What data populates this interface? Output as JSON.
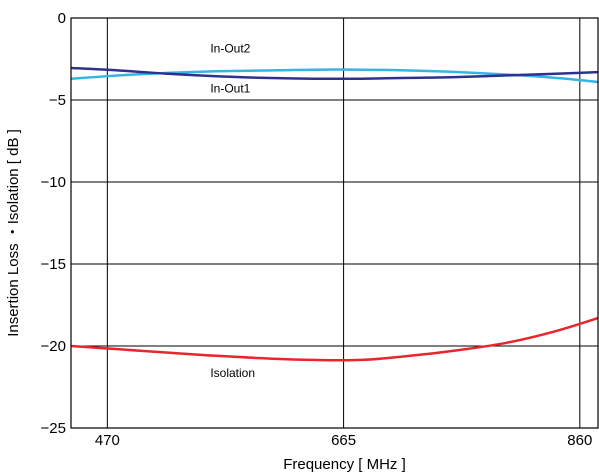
{
  "chart_data": {
    "type": "line",
    "title": "",
    "xlabel": "Frequency [ MHz ]",
    "ylabel": "Insertion Loss ・Isolation [ dB ]",
    "xlim": [
      440,
      875
    ],
    "ylim": [
      -25,
      0
    ],
    "x_ticks": [
      {
        "value": 470,
        "label": "470"
      },
      {
        "value": 665,
        "label": "665"
      },
      {
        "value": 860,
        "label": "860"
      }
    ],
    "y_ticks": [
      {
        "value": 0,
        "label": "0"
      },
      {
        "value": -5,
        "label": "−5"
      },
      {
        "value": -10,
        "label": "−10"
      },
      {
        "value": -15,
        "label": "−15"
      },
      {
        "value": -20,
        "label": "−20"
      },
      {
        "value": -25,
        "label": "−25"
      }
    ],
    "grid": true,
    "series": [
      {
        "name": "In-Out2",
        "color": "#33b5e5",
        "label_at": [
          555,
          -2.1
        ],
        "x": [
          440,
          480,
          520,
          560,
          600,
          640,
          680,
          720,
          760,
          800,
          840,
          875
        ],
        "y": [
          -3.7,
          -3.5,
          -3.35,
          -3.25,
          -3.2,
          -3.15,
          -3.15,
          -3.2,
          -3.3,
          -3.45,
          -3.65,
          -3.9
        ]
      },
      {
        "name": "In-Out1",
        "color": "#2e3192",
        "label_at": [
          555,
          -4.55
        ],
        "x": [
          440,
          480,
          520,
          560,
          600,
          640,
          680,
          720,
          760,
          800,
          840,
          875
        ],
        "y": [
          -3.05,
          -3.2,
          -3.4,
          -3.55,
          -3.65,
          -3.7,
          -3.7,
          -3.65,
          -3.6,
          -3.5,
          -3.4,
          -3.3
        ]
      },
      {
        "name": "Isolation",
        "color": "#e8262b",
        "label_at": [
          555,
          -21.9
        ],
        "x": [
          440,
          480,
          520,
          560,
          600,
          640,
          680,
          720,
          760,
          800,
          840,
          875
        ],
        "y": [
          -20.0,
          -20.2,
          -20.4,
          -20.6,
          -20.75,
          -20.85,
          -20.85,
          -20.6,
          -20.25,
          -19.8,
          -19.1,
          -18.3
        ]
      }
    ]
  }
}
